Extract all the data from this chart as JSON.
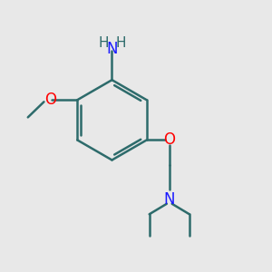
{
  "bg_color": "#e8e8e8",
  "bond_color": "#2d6b6b",
  "N_color": "#1a1aff",
  "O_color": "#ff0000",
  "H_color": "#2d6b6b",
  "line_width": 1.8,
  "figsize": [
    3.0,
    3.0
  ],
  "dpi": 100,
  "xlim": [
    0,
    10
  ],
  "ylim": [
    0,
    10
  ]
}
